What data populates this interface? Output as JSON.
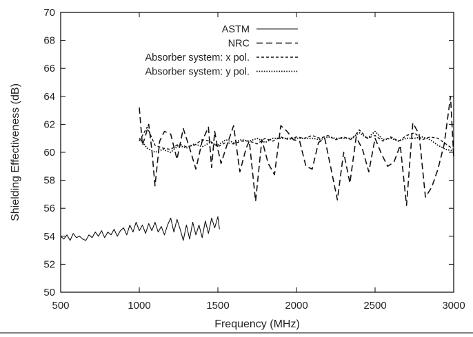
{
  "chart_data": {
    "type": "line",
    "title": "",
    "xlabel": "Frequency (MHz)",
    "ylabel": "Shielding Effectiveness (dB)",
    "xlim": [
      500,
      3000
    ],
    "ylim": [
      50,
      70
    ],
    "x_ticks": [
      500,
      1000,
      1500,
      2000,
      2500,
      3000
    ],
    "y_ticks": [
      50,
      52,
      54,
      56,
      58,
      60,
      62,
      64,
      66,
      68,
      70
    ],
    "legend_position": "top-center",
    "grid": false,
    "series": [
      {
        "name": "ASTM",
        "style": "solid",
        "x": [
          500,
          520,
          540,
          560,
          580,
          600,
          620,
          640,
          660,
          680,
          700,
          720,
          740,
          760,
          780,
          800,
          820,
          840,
          860,
          880,
          900,
          920,
          940,
          960,
          980,
          1000,
          1020,
          1040,
          1060,
          1080,
          1100,
          1120,
          1140,
          1160,
          1180,
          1200,
          1220,
          1240,
          1260,
          1280,
          1300,
          1320,
          1340,
          1360,
          1380,
          1400,
          1420,
          1440,
          1460,
          1480,
          1500,
          1510
        ],
        "values": [
          54.0,
          53.8,
          54.1,
          53.7,
          54.2,
          53.9,
          54.0,
          53.8,
          53.7,
          54.1,
          53.9,
          54.3,
          54.0,
          54.4,
          53.9,
          54.3,
          54.1,
          54.5,
          54.0,
          54.4,
          54.6,
          54.1,
          54.8,
          54.3,
          55.0,
          54.4,
          54.8,
          54.2,
          54.9,
          54.4,
          55.0,
          54.3,
          54.7,
          54.1,
          54.8,
          55.3,
          54.3,
          55.2,
          54.5,
          53.7,
          54.8,
          53.8,
          55.0,
          54.1,
          54.8,
          53.9,
          55.1,
          54.2,
          55.3,
          54.6,
          55.4,
          54.5
        ]
      },
      {
        "name": "NRC",
        "style": "dashed",
        "x": [
          1000,
          1020,
          1040,
          1060,
          1080,
          1100,
          1130,
          1160,
          1200,
          1240,
          1280,
          1320,
          1360,
          1400,
          1440,
          1460,
          1480,
          1500,
          1520,
          1560,
          1600,
          1640,
          1680,
          1700,
          1740,
          1780,
          1820,
          1860,
          1900,
          1940,
          1980,
          2020,
          2060,
          2100,
          2140,
          2180,
          2220,
          2260,
          2300,
          2340,
          2380,
          2420,
          2460,
          2500,
          2540,
          2580,
          2620,
          2660,
          2700,
          2740,
          2780,
          2820,
          2860,
          2900,
          2940,
          2980,
          3000
        ],
        "values": [
          63.2,
          60.5,
          61.2,
          62.0,
          60.2,
          57.6,
          60.8,
          61.5,
          61.3,
          59.5,
          61.7,
          60.3,
          58.8,
          60.8,
          61.8,
          58.9,
          61.5,
          60.2,
          59.2,
          60.6,
          61.9,
          58.6,
          60.3,
          60.8,
          56.5,
          60.9,
          59.2,
          58.4,
          61.9,
          61.5,
          60.9,
          60.8,
          59.0,
          58.8,
          60.7,
          61.0,
          58.8,
          56.6,
          60.0,
          57.8,
          61.1,
          60.2,
          58.6,
          61.0,
          59.9,
          59.0,
          59.3,
          60.5,
          56.2,
          62.1,
          61.3,
          56.8,
          57.5,
          58.8,
          60.6,
          64.0,
          59.7
        ]
      },
      {
        "name": "Absorber system: x pol.",
        "style": "short-dashed",
        "x": [
          1000,
          1050,
          1100,
          1150,
          1200,
          1250,
          1300,
          1350,
          1400,
          1450,
          1500,
          1550,
          1600,
          1650,
          1700,
          1750,
          1800,
          1850,
          1900,
          1950,
          2000,
          2050,
          2100,
          2150,
          2200,
          2250,
          2300,
          2350,
          2400,
          2450,
          2500,
          2550,
          2600,
          2650,
          2700,
          2750,
          2800,
          2850,
          2900,
          2950,
          3000
        ],
        "values": [
          60.8,
          61.8,
          60.5,
          60.3,
          60.2,
          60.6,
          60.4,
          60.5,
          60.9,
          60.8,
          60.4,
          60.7,
          60.6,
          60.8,
          60.8,
          60.6,
          61.0,
          60.8,
          61.1,
          60.9,
          61.1,
          61.0,
          61.2,
          61.0,
          61.2,
          60.9,
          61.1,
          60.9,
          61.6,
          61.0,
          61.2,
          60.8,
          61.1,
          60.8,
          61.2,
          61.4,
          60.9,
          61.1,
          61.0,
          60.6,
          60.2
        ]
      },
      {
        "name": "Absorber system: y pol.",
        "style": "dotted",
        "x": [
          1000,
          1050,
          1100,
          1150,
          1200,
          1250,
          1300,
          1350,
          1400,
          1450,
          1500,
          1550,
          1600,
          1650,
          1700,
          1750,
          1800,
          1850,
          1900,
          1950,
          2000,
          2050,
          2100,
          2150,
          2200,
          2250,
          2300,
          2350,
          2400,
          2450,
          2500,
          2550,
          2600,
          2650,
          2700,
          2750,
          2800,
          2850,
          2900,
          2950,
          3000
        ],
        "values": [
          61.0,
          60.3,
          60.0,
          60.2,
          60.0,
          60.5,
          60.3,
          60.6,
          60.4,
          60.7,
          60.5,
          60.9,
          60.7,
          60.9,
          60.8,
          61.0,
          60.7,
          61.0,
          61.0,
          61.0,
          61.0,
          61.0,
          61.0,
          60.9,
          61.1,
          61.0,
          61.0,
          61.0,
          61.4,
          61.0,
          61.5,
          60.9,
          61.0,
          60.8,
          61.0,
          61.0,
          61.1,
          60.9,
          60.5,
          60.2,
          60.1
        ]
      }
    ]
  }
}
